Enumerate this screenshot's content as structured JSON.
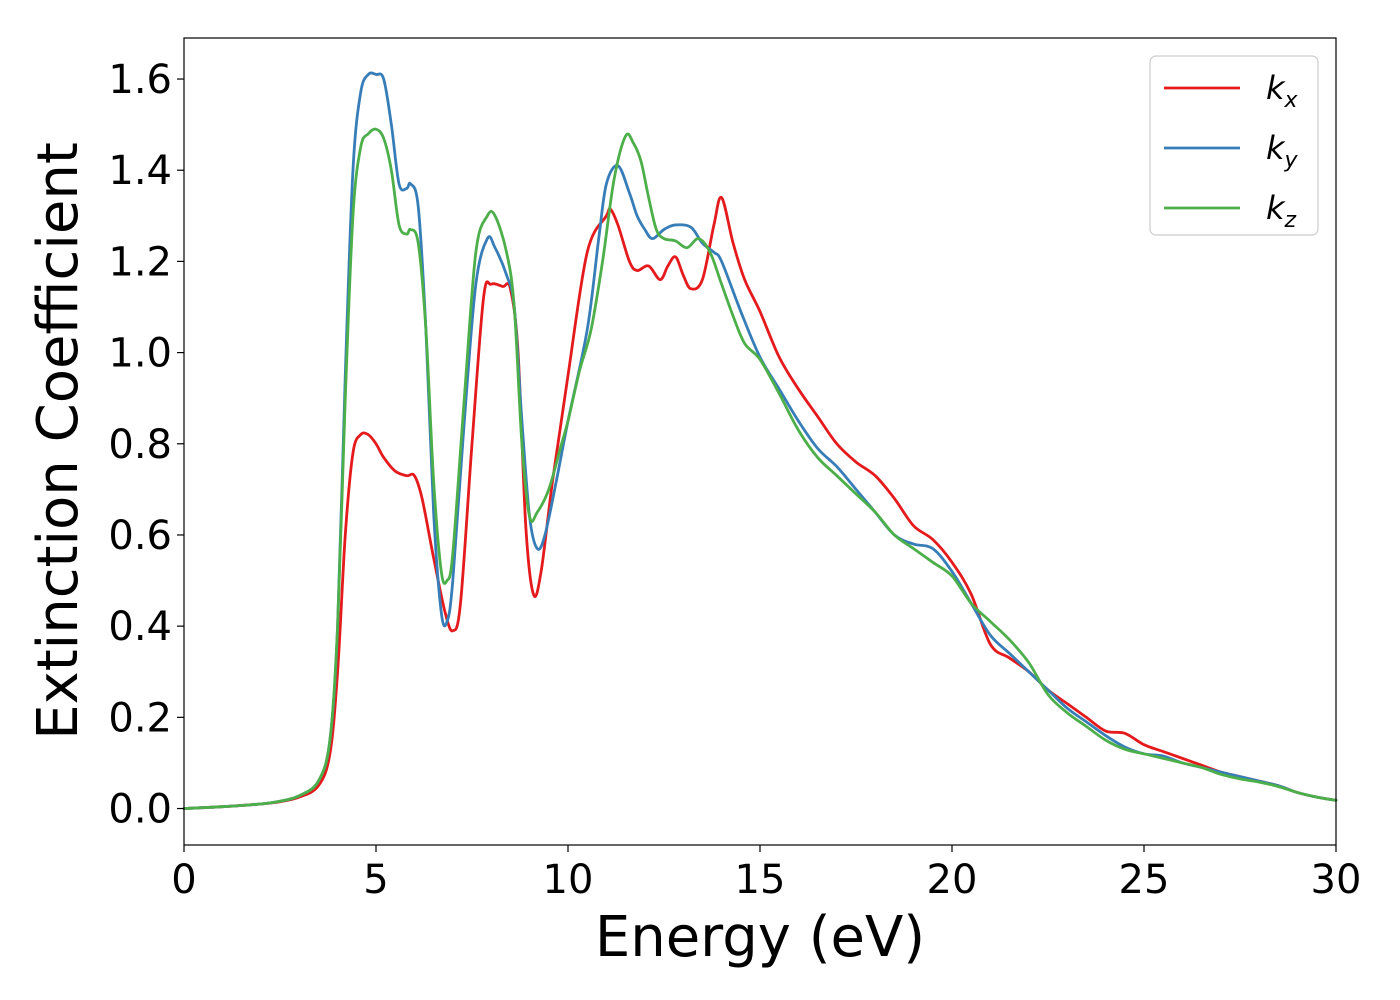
{
  "chart_data": {
    "type": "line",
    "title": "",
    "xlabel": "Energy (eV)",
    "ylabel": "Extinction Coefficient",
    "xlim": [
      0,
      30
    ],
    "ylim": [
      -0.08,
      1.69
    ],
    "x_ticks": [
      "0",
      "5",
      "10",
      "15",
      "20",
      "25",
      "30"
    ],
    "y_ticks": [
      "0.0",
      "0.2",
      "0.4",
      "0.6",
      "0.8",
      "1.0",
      "1.2",
      "1.4",
      "1.6"
    ],
    "grid": false,
    "legend_position": "top-right",
    "series": [
      {
        "name": "k_x",
        "legend_base": "k",
        "legend_sub": "x",
        "color": "#e41a1c",
        "points": [
          [
            0,
            0
          ],
          [
            1,
            0.004
          ],
          [
            2,
            0.01
          ],
          [
            2.5,
            0.015
          ],
          [
            3,
            0.025
          ],
          [
            3.5,
            0.05
          ],
          [
            3.8,
            0.12
          ],
          [
            4.0,
            0.3
          ],
          [
            4.2,
            0.6
          ],
          [
            4.4,
            0.78
          ],
          [
            4.6,
            0.82
          ],
          [
            4.8,
            0.82
          ],
          [
            5.0,
            0.8
          ],
          [
            5.2,
            0.77
          ],
          [
            5.5,
            0.74
          ],
          [
            5.8,
            0.73
          ],
          [
            6.0,
            0.73
          ],
          [
            6.2,
            0.68
          ],
          [
            6.5,
            0.55
          ],
          [
            6.8,
            0.43
          ],
          [
            7.0,
            0.39
          ],
          [
            7.2,
            0.45
          ],
          [
            7.5,
            0.8
          ],
          [
            7.8,
            1.12
          ],
          [
            8.0,
            1.15
          ],
          [
            8.3,
            1.145
          ],
          [
            8.5,
            1.14
          ],
          [
            8.7,
            1.0
          ],
          [
            8.9,
            0.62
          ],
          [
            9.1,
            0.47
          ],
          [
            9.3,
            0.52
          ],
          [
            9.6,
            0.72
          ],
          [
            10,
            0.95
          ],
          [
            10.5,
            1.22
          ],
          [
            11,
            1.3
          ],
          [
            11.1,
            1.315
          ],
          [
            11.3,
            1.28
          ],
          [
            11.6,
            1.2
          ],
          [
            11.8,
            1.18
          ],
          [
            12.1,
            1.19
          ],
          [
            12.4,
            1.16
          ],
          [
            12.6,
            1.19
          ],
          [
            12.8,
            1.21
          ],
          [
            13.0,
            1.17
          ],
          [
            13.2,
            1.14
          ],
          [
            13.5,
            1.16
          ],
          [
            13.8,
            1.28
          ],
          [
            14.0,
            1.34
          ],
          [
            14.3,
            1.24
          ],
          [
            14.6,
            1.16
          ],
          [
            15.0,
            1.09
          ],
          [
            15.5,
            0.99
          ],
          [
            16.0,
            0.92
          ],
          [
            16.5,
            0.86
          ],
          [
            17,
            0.8
          ],
          [
            17.5,
            0.76
          ],
          [
            18,
            0.73
          ],
          [
            18.5,
            0.68
          ],
          [
            19,
            0.62
          ],
          [
            19.5,
            0.59
          ],
          [
            20,
            0.54
          ],
          [
            20.5,
            0.47
          ],
          [
            21,
            0.36
          ],
          [
            21.5,
            0.33
          ],
          [
            22,
            0.3
          ],
          [
            22.5,
            0.26
          ],
          [
            23,
            0.23
          ],
          [
            23.5,
            0.2
          ],
          [
            24,
            0.17
          ],
          [
            24.5,
            0.165
          ],
          [
            25,
            0.14
          ],
          [
            25.5,
            0.125
          ],
          [
            26,
            0.11
          ],
          [
            26.5,
            0.095
          ],
          [
            27,
            0.08
          ],
          [
            27.5,
            0.07
          ],
          [
            28,
            0.06
          ],
          [
            28.5,
            0.05
          ],
          [
            29,
            0.035
          ],
          [
            29.5,
            0.025
          ],
          [
            30,
            0.018
          ]
        ]
      },
      {
        "name": "k_y",
        "legend_base": "k",
        "legend_sub": "y",
        "color": "#377eb8",
        "points": [
          [
            0,
            0
          ],
          [
            1,
            0.004
          ],
          [
            2,
            0.01
          ],
          [
            2.5,
            0.016
          ],
          [
            3,
            0.028
          ],
          [
            3.5,
            0.06
          ],
          [
            3.8,
            0.15
          ],
          [
            4.0,
            0.4
          ],
          [
            4.2,
            0.95
          ],
          [
            4.4,
            1.4
          ],
          [
            4.6,
            1.57
          ],
          [
            4.8,
            1.61
          ],
          [
            5.0,
            1.61
          ],
          [
            5.2,
            1.6
          ],
          [
            5.4,
            1.5
          ],
          [
            5.6,
            1.37
          ],
          [
            5.8,
            1.36
          ],
          [
            5.9,
            1.37
          ],
          [
            6.1,
            1.32
          ],
          [
            6.3,
            1.05
          ],
          [
            6.5,
            0.65
          ],
          [
            6.7,
            0.43
          ],
          [
            6.85,
            0.41
          ],
          [
            7.0,
            0.5
          ],
          [
            7.3,
            0.85
          ],
          [
            7.6,
            1.15
          ],
          [
            7.9,
            1.25
          ],
          [
            8.1,
            1.23
          ],
          [
            8.4,
            1.17
          ],
          [
            8.6,
            1.1
          ],
          [
            8.8,
            0.85
          ],
          [
            9.0,
            0.64
          ],
          [
            9.2,
            0.57
          ],
          [
            9.4,
            0.6
          ],
          [
            9.7,
            0.72
          ],
          [
            10,
            0.85
          ],
          [
            10.5,
            1.05
          ],
          [
            10.8,
            1.25
          ],
          [
            11,
            1.37
          ],
          [
            11.3,
            1.41
          ],
          [
            11.6,
            1.35
          ],
          [
            11.8,
            1.3
          ],
          [
            12.0,
            1.27
          ],
          [
            12.2,
            1.25
          ],
          [
            12.5,
            1.27
          ],
          [
            12.8,
            1.28
          ],
          [
            13.2,
            1.275
          ],
          [
            13.5,
            1.24
          ],
          [
            13.8,
            1.22
          ],
          [
            14.0,
            1.2
          ],
          [
            14.5,
            1.09
          ],
          [
            15,
            0.99
          ],
          [
            15.5,
            0.92
          ],
          [
            16,
            0.85
          ],
          [
            16.5,
            0.79
          ],
          [
            17,
            0.75
          ],
          [
            17.5,
            0.7
          ],
          [
            18,
            0.65
          ],
          [
            18.5,
            0.6
          ],
          [
            19,
            0.58
          ],
          [
            19.5,
            0.57
          ],
          [
            20,
            0.52
          ],
          [
            20.5,
            0.45
          ],
          [
            21,
            0.38
          ],
          [
            21.5,
            0.34
          ],
          [
            22,
            0.3
          ],
          [
            22.5,
            0.26
          ],
          [
            23,
            0.22
          ],
          [
            23.5,
            0.19
          ],
          [
            24,
            0.16
          ],
          [
            24.5,
            0.135
          ],
          [
            25,
            0.12
          ],
          [
            25.5,
            0.115
          ],
          [
            26,
            0.1
          ],
          [
            26.5,
            0.09
          ],
          [
            27,
            0.08
          ],
          [
            27.5,
            0.07
          ],
          [
            28,
            0.06
          ],
          [
            28.5,
            0.05
          ],
          [
            29,
            0.035
          ],
          [
            29.5,
            0.025
          ],
          [
            30,
            0.018
          ]
        ]
      },
      {
        "name": "k_z",
        "legend_base": "k",
        "legend_sub": "z",
        "color": "#4daf4a",
        "points": [
          [
            0,
            0
          ],
          [
            1,
            0.004
          ],
          [
            2,
            0.01
          ],
          [
            2.5,
            0.016
          ],
          [
            3,
            0.028
          ],
          [
            3.5,
            0.06
          ],
          [
            3.8,
            0.15
          ],
          [
            4.0,
            0.4
          ],
          [
            4.2,
            0.9
          ],
          [
            4.4,
            1.3
          ],
          [
            4.6,
            1.45
          ],
          [
            4.8,
            1.48
          ],
          [
            5.0,
            1.49
          ],
          [
            5.2,
            1.47
          ],
          [
            5.4,
            1.4
          ],
          [
            5.6,
            1.28
          ],
          [
            5.8,
            1.26
          ],
          [
            5.9,
            1.27
          ],
          [
            6.1,
            1.24
          ],
          [
            6.3,
            1.05
          ],
          [
            6.5,
            0.72
          ],
          [
            6.7,
            0.52
          ],
          [
            6.85,
            0.5
          ],
          [
            7.0,
            0.56
          ],
          [
            7.3,
            0.9
          ],
          [
            7.6,
            1.22
          ],
          [
            7.9,
            1.3
          ],
          [
            8.1,
            1.3
          ],
          [
            8.4,
            1.22
          ],
          [
            8.6,
            1.1
          ],
          [
            8.8,
            0.8
          ],
          [
            9.0,
            0.64
          ],
          [
            9.2,
            0.65
          ],
          [
            9.5,
            0.7
          ],
          [
            9.8,
            0.79
          ],
          [
            10,
            0.85
          ],
          [
            10.3,
            0.96
          ],
          [
            10.6,
            1.05
          ],
          [
            10.9,
            1.2
          ],
          [
            11.2,
            1.38
          ],
          [
            11.5,
            1.475
          ],
          [
            11.7,
            1.46
          ],
          [
            11.9,
            1.42
          ],
          [
            12.1,
            1.34
          ],
          [
            12.3,
            1.27
          ],
          [
            12.5,
            1.25
          ],
          [
            12.8,
            1.245
          ],
          [
            13.1,
            1.23
          ],
          [
            13.4,
            1.25
          ],
          [
            13.7,
            1.22
          ],
          [
            14.0,
            1.15
          ],
          [
            14.3,
            1.08
          ],
          [
            14.6,
            1.02
          ],
          [
            15,
            0.985
          ],
          [
            15.5,
            0.91
          ],
          [
            16,
            0.83
          ],
          [
            16.5,
            0.77
          ],
          [
            17,
            0.73
          ],
          [
            17.5,
            0.69
          ],
          [
            18,
            0.65
          ],
          [
            18.5,
            0.6
          ],
          [
            19,
            0.57
          ],
          [
            19.5,
            0.54
          ],
          [
            20,
            0.51
          ],
          [
            20.5,
            0.45
          ],
          [
            21,
            0.41
          ],
          [
            21.5,
            0.37
          ],
          [
            22,
            0.32
          ],
          [
            22.5,
            0.25
          ],
          [
            23,
            0.21
          ],
          [
            23.5,
            0.18
          ],
          [
            24,
            0.15
          ],
          [
            24.5,
            0.13
          ],
          [
            25,
            0.12
          ],
          [
            25.5,
            0.11
          ],
          [
            26,
            0.1
          ],
          [
            26.5,
            0.09
          ],
          [
            27,
            0.075
          ],
          [
            27.5,
            0.065
          ],
          [
            28,
            0.058
          ],
          [
            28.5,
            0.048
          ],
          [
            29,
            0.035
          ],
          [
            29.5,
            0.025
          ],
          [
            30,
            0.018
          ]
        ]
      }
    ]
  }
}
